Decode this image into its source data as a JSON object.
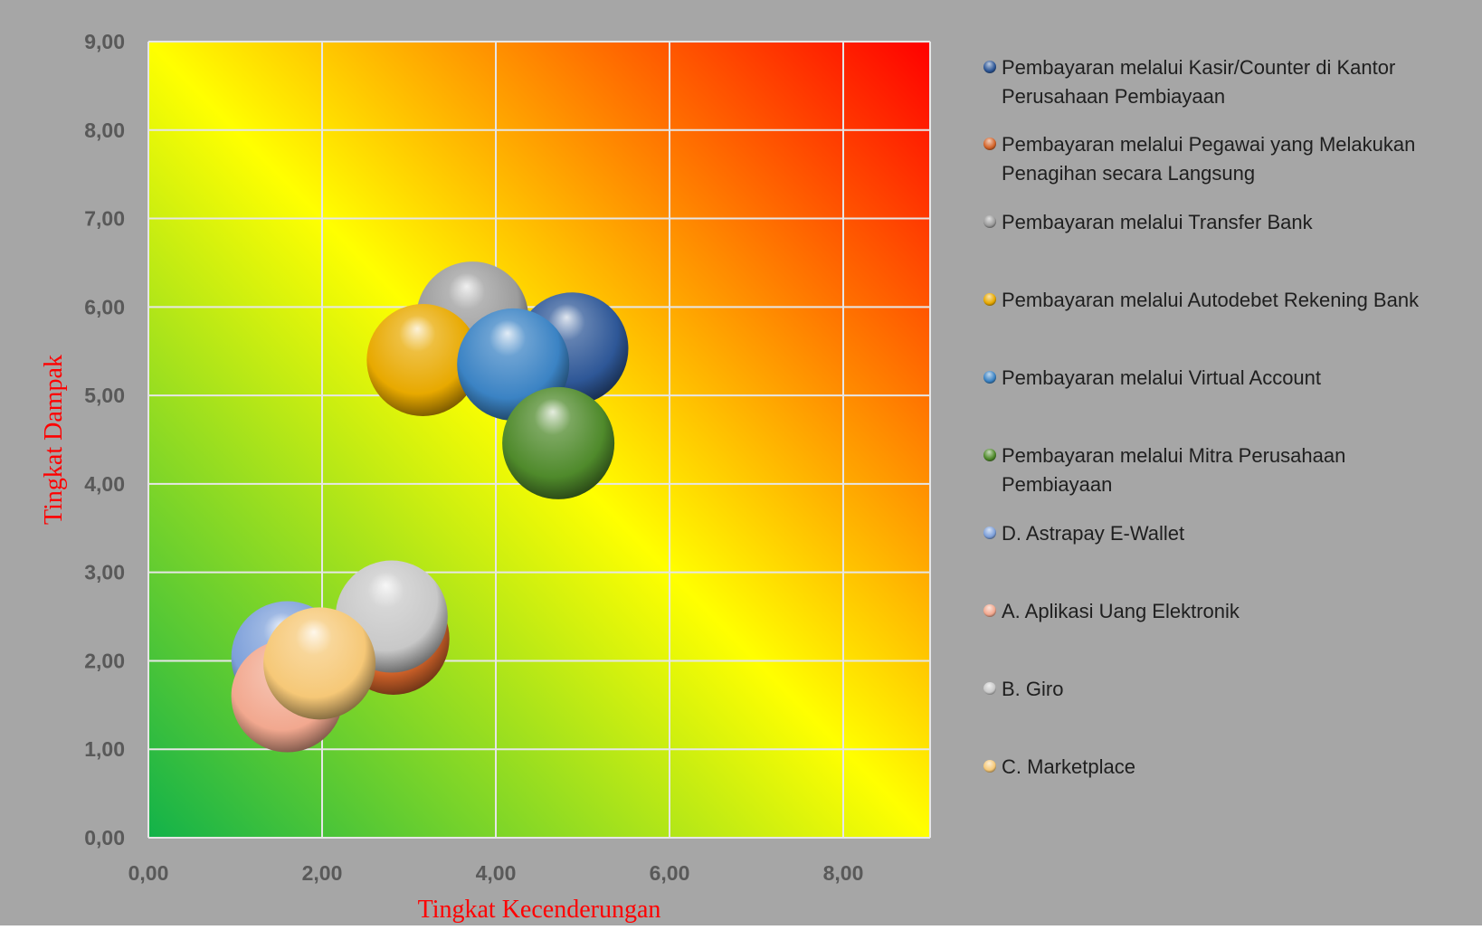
{
  "chart_data": {
    "type": "bubble",
    "title": "",
    "xlabel": "Tingkat Kecenderungan",
    "ylabel": "Tingkat Dampak",
    "xlim": [
      0,
      9
    ],
    "ylim": [
      0,
      9
    ],
    "x_ticks": [
      "0,00",
      "2,00",
      "4,00",
      "6,00",
      "8,00"
    ],
    "y_ticks": [
      "0,00",
      "1,00",
      "2,00",
      "3,00",
      "4,00",
      "5,00",
      "6,00",
      "7,00",
      "8,00",
      "9,00"
    ],
    "grid": true,
    "background_gradient": [
      "#12b24a",
      "#ffff00",
      "#ff0000"
    ],
    "legend_position": "right",
    "series": [
      {
        "name": "Pembayaran melalui Kasir/Counter di Kantor Perusahaan Pembiayaan",
        "x": 4.88,
        "y": 5.53,
        "color": "#2e5797"
      },
      {
        "name": "Pembayaran melalui Pegawai yang Melakukan Penagihan secara Langsung",
        "x": 2.82,
        "y": 2.25,
        "color": "#d4642a"
      },
      {
        "name": "Pembayaran melalui Transfer Bank",
        "x": 3.73,
        "y": 5.88,
        "color": "#9c9c9c"
      },
      {
        "name": "Pembayaran melalui Autodebet Rekening Bank",
        "x": 3.16,
        "y": 5.4,
        "color": "#e8a900"
      },
      {
        "name": "Pembayaran melalui Virtual Account",
        "x": 4.2,
        "y": 5.35,
        "color": "#3b83c4"
      },
      {
        "name": "Pembayaran melalui Mitra Perusahaan Pembiayaan",
        "x": 4.72,
        "y": 4.46,
        "color": "#4f8a2b"
      },
      {
        "name": "D.  Astrapay E-Wallet",
        "x": 1.6,
        "y": 2.04,
        "color": "#7ea0da"
      },
      {
        "name": "A.  Aplikasi Uang Elektronik",
        "x": 1.6,
        "y": 1.6,
        "color": "#f2a88f"
      },
      {
        "name": "B.  Giro",
        "x": 2.8,
        "y": 2.5,
        "color": "#c8c8c8"
      },
      {
        "name": "C. Marketplace",
        "x": 1.97,
        "y": 1.97,
        "color": "#f6c877"
      }
    ]
  }
}
